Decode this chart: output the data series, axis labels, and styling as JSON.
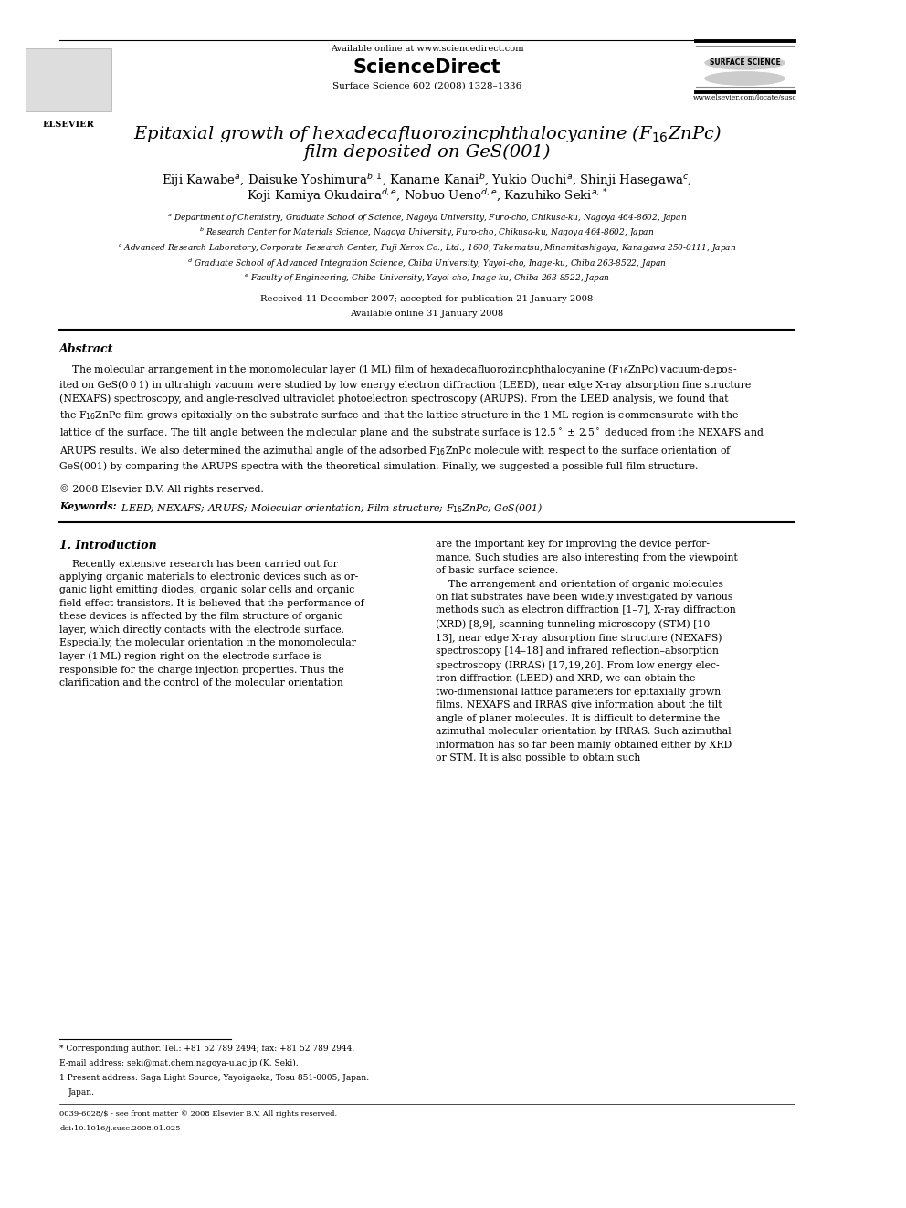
{
  "bg_color": "#ffffff",
  "page_width": 9.92,
  "page_height": 13.23,
  "header": {
    "elsevier_text": "ELSEVIER",
    "available_online": "Available online at www.sciencedirect.com",
    "sciencedirect": "ScienceDirect",
    "journal_info": "Surface Science 602 (2008) 1328–1336",
    "surface_science": "SURFACE SCIENCE",
    "website": "www.elsevier.com/locate/susc"
  },
  "title_line1": "Epitaxial growth of hexadecafluorozincphthalocyanine (F$_{16}$ZnPc)",
  "title_line2": "film deposited on GeS(001)",
  "received": "Received 11 December 2007; accepted for publication 21 January 2008",
  "available": "Available online 31 January 2008",
  "abstract_title": "Abstract",
  "copyright": "© 2008 Elsevier B.V. All rights reserved.",
  "keywords_label": "Keywords:",
  "keywords_body": "  LEED; NEXAFS; ARUPS; Molecular orientation; Film structure; F$_{16}$ZnPc; GeS(001)",
  "section1_title": "1. Introduction",
  "footnote_star": "* Corresponding author. Tel.: +81 52 789 2494; fax: +81 52 789 2944.",
  "footnote_email": "E-mail address: seki@mat.chem.nagoya-u.ac.jp (K. Seki).",
  "footnote_1": "1 Present address: Saga Light Source, Yayoigaoka, Tosu 851-0005, Japan.",
  "bottom_issn": "0039-6028/$ - see front matter © 2008 Elsevier B.V. All rights reserved.",
  "bottom_doi": "doi:10.1016/j.susc.2008.01.025",
  "lm": 0.07,
  "rm": 0.93,
  "col2_lm": 0.505
}
